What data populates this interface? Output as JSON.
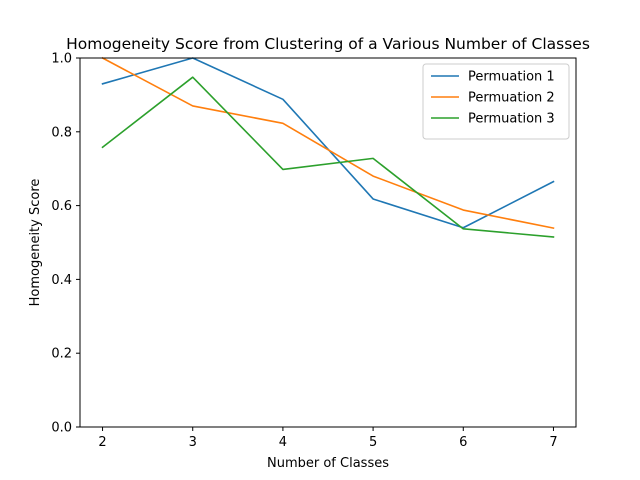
{
  "chart_data": {
    "type": "line",
    "title": "Homogeneity Score from Clustering of a Various Number of Classes",
    "xlabel": "Number of Classes",
    "ylabel": "Homogeneity Score",
    "x": [
      2,
      3,
      4,
      5,
      6,
      7
    ],
    "xticks": [
      "2",
      "3",
      "4",
      "5",
      "6",
      "7"
    ],
    "yticks": [
      "0.0",
      "0.2",
      "0.4",
      "0.6",
      "0.8",
      "1.0"
    ],
    "ylim": [
      0,
      1
    ],
    "xlim": [
      1.75,
      7.25
    ],
    "grid": false,
    "legend_position": "top-right",
    "series": [
      {
        "name": "Permuation 1",
        "color": "#1f77b4",
        "values": [
          0.93,
          1.0,
          0.888,
          0.618,
          0.54,
          0.665
        ]
      },
      {
        "name": "Permuation 2",
        "color": "#ff7f0e",
        "values": [
          1.0,
          0.87,
          0.823,
          0.68,
          0.588,
          0.539
        ]
      },
      {
        "name": "Permuation 3",
        "color": "#2ca02c",
        "values": [
          0.758,
          0.948,
          0.698,
          0.728,
          0.537,
          0.515
        ]
      }
    ]
  }
}
